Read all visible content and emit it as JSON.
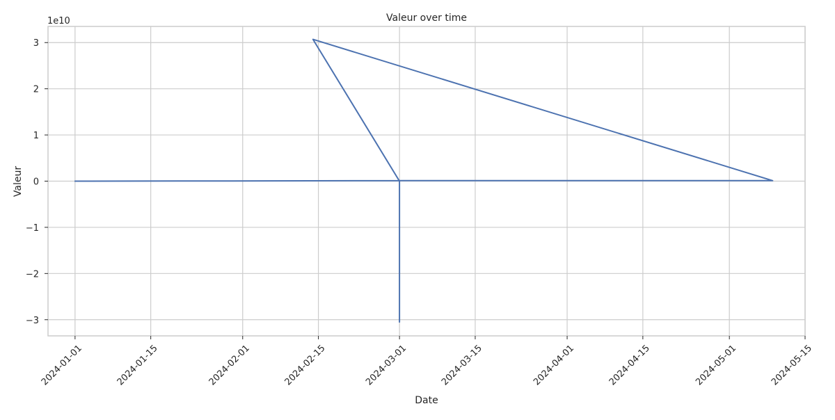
{
  "chart_data": {
    "type": "line",
    "title": "Valeur over time",
    "xlabel": "Date",
    "ylabel": "Valeur",
    "y_offset_label": "1e10",
    "y_scale": 10000000000,
    "grid": true,
    "legend": "none",
    "xlim": [
      "2023-12-27",
      "2024-05-15"
    ],
    "ylim": [
      -33500000000,
      33500000000
    ],
    "x_ticks": [
      "2024-01-01",
      "2024-01-15",
      "2024-02-01",
      "2024-02-15",
      "2024-03-01",
      "2024-03-15",
      "2024-04-01",
      "2024-04-15",
      "2024-05-01",
      "2024-05-15"
    ],
    "y_ticks": [
      -30000000000,
      -20000000000,
      -10000000000,
      0,
      10000000000,
      20000000000,
      30000000000
    ],
    "y_tick_labels": [
      "−3",
      "−2",
      "−1",
      "0",
      "1",
      "2",
      "3"
    ],
    "series": [
      {
        "color": "#4c72b0",
        "points": [
          {
            "x": "2024-01-01",
            "y": 0
          },
          {
            "x": "2024-01-30",
            "y": 50000000
          },
          {
            "x": "2024-03-01",
            "y": 100000000
          },
          {
            "x": "2024-05-09",
            "y": 100000000
          },
          {
            "x": "2024-02-14",
            "y": 30700000000
          },
          {
            "x": "2024-03-01",
            "y": 0
          },
          {
            "x": "2024-03-01",
            "y": -30500000000
          }
        ]
      }
    ]
  }
}
